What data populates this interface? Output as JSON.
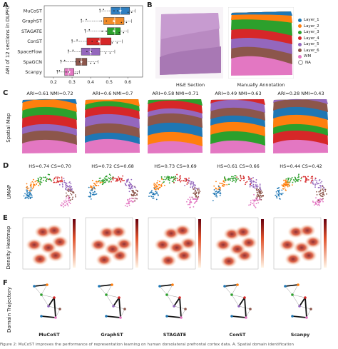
{
  "panel_labels": {
    "A": "A",
    "B": "B",
    "C": "C",
    "D": "D",
    "E": "E",
    "F": "F"
  },
  "panel_a": {
    "y_axis_title": "ARI of 12 sections in DLPFC",
    "methods": [
      "MuCoST",
      "GraphST",
      "STAGATE",
      "ConST",
      "SpaceFlow",
      "SpaGCN",
      "Scanpy"
    ],
    "x_ticks": [
      "0.2",
      "0.3",
      "0.4",
      "0.5",
      "0.6"
    ]
  },
  "chart_data": {
    "type": "box",
    "ylabel": "ARI of 12 sections in DLPFC",
    "xlim": [
      0.15,
      0.68
    ],
    "categories": [
      "MuCoST",
      "GraphST",
      "STAGATE",
      "ConST",
      "SpaceFlow",
      "SpaGCN",
      "Scanpy"
    ],
    "boxes": [
      {
        "name": "MuCoST",
        "q1": 0.51,
        "median": 0.56,
        "q3": 0.61,
        "min": 0.45,
        "max": 0.64,
        "color": "#2f7fc1"
      },
      {
        "name": "GraphST",
        "q1": 0.47,
        "median": 0.53,
        "q3": 0.58,
        "min": 0.35,
        "max": 0.62,
        "color": "#f28c28"
      },
      {
        "name": "STAGATE",
        "q1": 0.49,
        "median": 0.53,
        "q3": 0.56,
        "min": 0.37,
        "max": 0.6,
        "color": "#2ca02c"
      },
      {
        "name": "ConST",
        "q1": 0.38,
        "median": 0.45,
        "q3": 0.51,
        "min": 0.3,
        "max": 0.57,
        "color": "#d62728"
      },
      {
        "name": "SpaceFlow",
        "q1": 0.35,
        "median": 0.4,
        "q3": 0.45,
        "min": 0.28,
        "max": 0.53,
        "color": "#9467bd"
      },
      {
        "name": "SpaGCN",
        "q1": 0.32,
        "median": 0.35,
        "q3": 0.38,
        "min": 0.24,
        "max": 0.44,
        "color": "#8c564b"
      },
      {
        "name": "Scanpy",
        "q1": 0.26,
        "median": 0.28,
        "q3": 0.31,
        "min": 0.22,
        "max": 0.34,
        "color": "#e377c2"
      }
    ]
  },
  "panel_b": {
    "he_caption": "H&E Section",
    "annot_caption": "Manually Annotation",
    "legend": [
      {
        "label": "Layer_1",
        "color": "#1f77b4"
      },
      {
        "label": "Layer_2",
        "color": "#ff7f0e"
      },
      {
        "label": "Layer_3",
        "color": "#2ca02c"
      },
      {
        "label": "Layer_4",
        "color": "#d62728"
      },
      {
        "label": "Layer_5",
        "color": "#9467bd"
      },
      {
        "label": "Layer_6",
        "color": "#8c564b"
      },
      {
        "label": "WM",
        "color": "#e377c2"
      },
      {
        "label": "NA",
        "color": "#ffffff"
      }
    ]
  },
  "panel_c": {
    "row_title": "Spatial Map",
    "scores": [
      "ARI=0.61  NMI=0.72",
      "ARI=0.6  NMI=0.7",
      "ARI=0.58  NMI=0.71",
      "ARI=0.49  NMI=0.63",
      "ARI=0.28  NMI=0.43"
    ]
  },
  "panel_d": {
    "row_title": "UMAP",
    "scores": [
      "HS=0.74  CS=0.70",
      "HS=0.72  CS=0.68",
      "HS=0.73  CS=0.69",
      "HS=0.61  CS=0.66",
      "HS=0.44  CS=0.42"
    ]
  },
  "panel_e": {
    "row_title": "Density Heatmap"
  },
  "panel_f": {
    "row_title": "Domain Trajectory",
    "methods": [
      "MuCoST",
      "GraphST",
      "STAGATE",
      "ConST",
      "Scanpy"
    ]
  },
  "caption": "Figure 2: MuCoST improves the performance of representation learning on human dorsolateral prefrontal cortex data. A. Spatial domain identification"
}
